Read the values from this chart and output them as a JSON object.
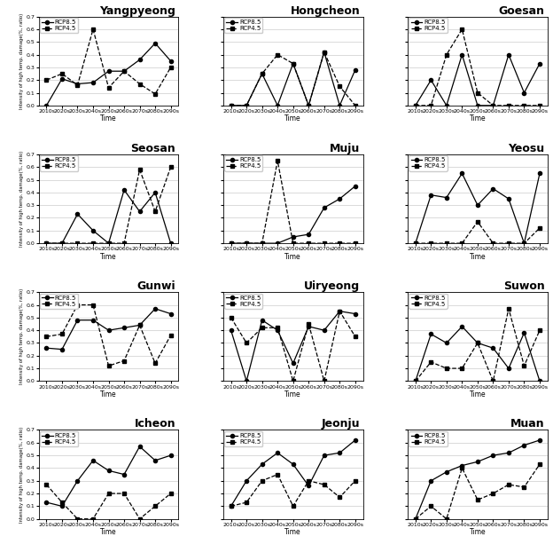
{
  "times": [
    "2010s",
    "2020s",
    "2030s",
    "2040s",
    "2050s",
    "2060s",
    "2070s",
    "2080s",
    "2090s"
  ],
  "subplots": [
    {
      "title": "Yangpyeong",
      "rcp85_vals": [
        0.0,
        0.21,
        0.17,
        0.18,
        0.27,
        0.27,
        0.36,
        0.49,
        0.35
      ],
      "rcp45_vals": [
        0.2,
        0.25,
        0.16,
        0.6,
        0.14,
        0.27,
        0.17,
        0.09,
        0.3
      ]
    },
    {
      "title": "Hongcheon",
      "rcp85_vals": [
        0.0,
        0.0,
        0.25,
        0.0,
        0.33,
        0.0,
        0.42,
        0.0,
        0.28
      ],
      "rcp45_vals": [
        0.0,
        0.0,
        0.25,
        0.4,
        0.33,
        0.0,
        0.42,
        0.15,
        0.0
      ]
    },
    {
      "title": "Goesan",
      "rcp85_vals": [
        0.0,
        0.2,
        0.0,
        0.4,
        0.0,
        0.0,
        0.4,
        0.1,
        0.33
      ],
      "rcp45_vals": [
        0.0,
        0.0,
        0.4,
        0.6,
        0.1,
        0.0,
        0.0,
        0.0,
        0.0
      ]
    },
    {
      "title": "Seosan",
      "rcp85_vals": [
        0.0,
        0.0,
        0.23,
        0.1,
        0.0,
        0.42,
        0.25,
        0.4,
        0.0
      ],
      "rcp45_vals": [
        0.0,
        0.0,
        0.0,
        0.0,
        0.0,
        0.0,
        0.58,
        0.25,
        0.6
      ]
    },
    {
      "title": "Muju",
      "rcp85_vals": [
        0.0,
        0.0,
        0.0,
        0.0,
        0.05,
        0.07,
        0.28,
        0.35,
        0.45
      ],
      "rcp45_vals": [
        0.0,
        0.0,
        0.0,
        0.65,
        0.0,
        0.0,
        0.0,
        0.0,
        0.0
      ]
    },
    {
      "title": "Yeosu",
      "rcp85_vals": [
        0.0,
        0.38,
        0.36,
        0.55,
        0.3,
        0.43,
        0.35,
        0.0,
        0.55
      ],
      "rcp45_vals": [
        0.0,
        0.0,
        0.0,
        0.0,
        0.17,
        0.0,
        0.0,
        0.0,
        0.12
      ]
    },
    {
      "title": "Gunwi",
      "rcp85_vals": [
        0.26,
        0.25,
        0.48,
        0.48,
        0.4,
        0.42,
        0.44,
        0.57,
        0.53
      ],
      "rcp45_vals": [
        0.35,
        0.37,
        0.6,
        0.6,
        0.12,
        0.16,
        0.44,
        0.14,
        0.36
      ]
    },
    {
      "title": "Uiryeong",
      "rcp85_vals": [
        0.4,
        0.0,
        0.48,
        0.4,
        0.14,
        0.43,
        0.4,
        0.55,
        0.53
      ],
      "rcp45_vals": [
        0.5,
        0.3,
        0.42,
        0.42,
        0.0,
        0.45,
        0.0,
        0.55,
        0.35
      ]
    },
    {
      "title": "Suwon",
      "rcp85_vals": [
        0.0,
        0.37,
        0.3,
        0.43,
        0.3,
        0.26,
        0.1,
        0.38,
        0.0
      ],
      "rcp45_vals": [
        0.0,
        0.15,
        0.1,
        0.1,
        0.3,
        0.0,
        0.57,
        0.12,
        0.4
      ]
    },
    {
      "title": "Icheon",
      "rcp85_vals": [
        0.13,
        0.1,
        0.3,
        0.46,
        0.38,
        0.35,
        0.57,
        0.46,
        0.5
      ],
      "rcp45_vals": [
        0.27,
        0.13,
        0.0,
        0.0,
        0.2,
        0.2,
        0.0,
        0.1,
        0.2
      ]
    },
    {
      "title": "Jeonju",
      "rcp85_vals": [
        0.1,
        0.3,
        0.43,
        0.52,
        0.43,
        0.26,
        0.5,
        0.52,
        0.62
      ],
      "rcp45_vals": [
        0.1,
        0.13,
        0.3,
        0.35,
        0.1,
        0.3,
        0.27,
        0.17,
        0.3
      ]
    },
    {
      "title": "Muan",
      "rcp85_vals": [
        0.0,
        0.3,
        0.37,
        0.42,
        0.45,
        0.5,
        0.52,
        0.58,
        0.62
      ],
      "rcp45_vals": [
        0.0,
        0.1,
        0.0,
        0.4,
        0.15,
        0.2,
        0.27,
        0.25,
        0.43
      ]
    }
  ],
  "ylim": [
    0.0,
    0.7
  ],
  "yticks": [
    0.0,
    0.1,
    0.2,
    0.3,
    0.4,
    0.5,
    0.6,
    0.7
  ],
  "ylabel": "Intensity of high temp. damage(%, ratio)",
  "xlabel": "Time",
  "legend_rcp85": "RCP8.5",
  "legend_rcp45": "RCP4.5",
  "bg_color": "white",
  "title_fontsize": 9,
  "legend_fontsize": 5,
  "tick_fontsize": 4.5,
  "ylabel_fontsize": 3.8,
  "xlabel_fontsize": 5.5
}
